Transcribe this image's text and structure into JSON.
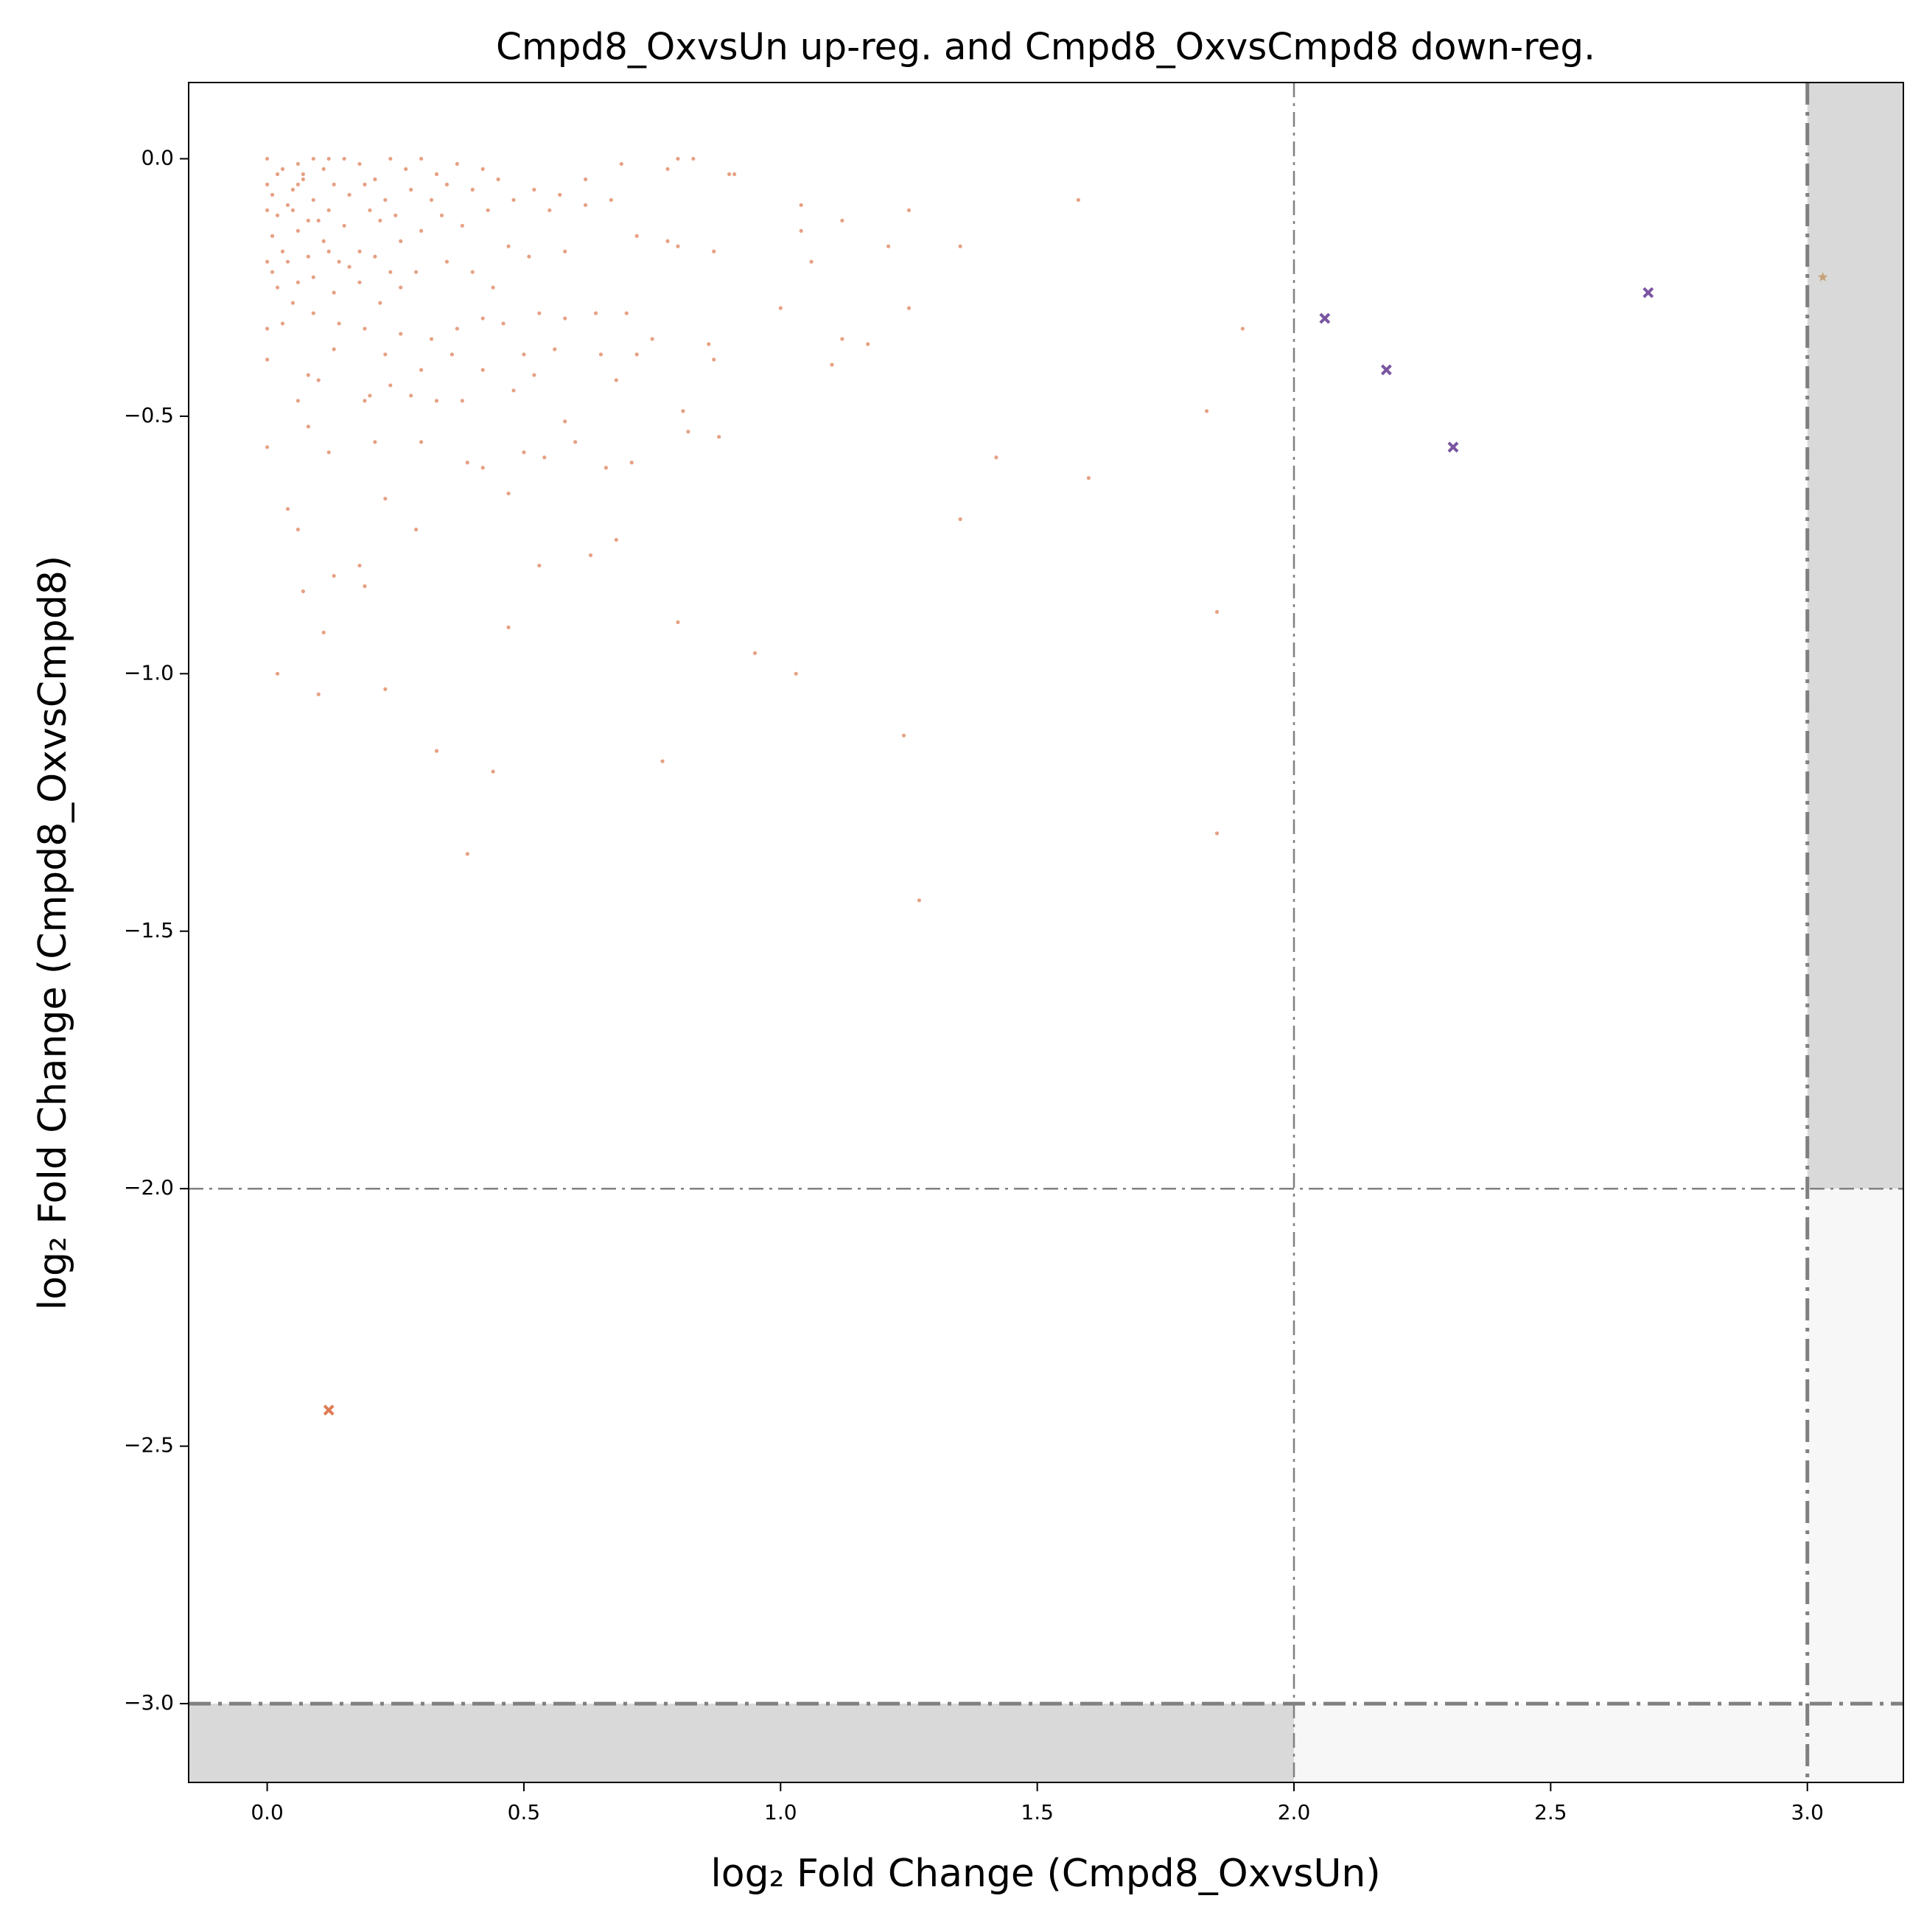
{
  "chart_data": {
    "type": "scatter",
    "title": "Cmpd8_OxvsUn up-reg. and Cmpd8_OxvsCmpd8 down-reg.",
    "x_label": "log₂ Fold Change (Cmpd8_OxvsUn)",
    "y_label": "log₂ Fold Change (Cmpd8_OxvsCmpd8)",
    "xlim": [
      -0.153,
      3.187
    ],
    "ylim": [
      -3.153,
      0.148
    ],
    "xticks": [
      {
        "value": 0,
        "label": "0.0"
      },
      0.5,
      {
        "value": 1,
        "label": "1.0"
      },
      1.5,
      {
        "value": 2,
        "label": "2.0"
      },
      2.5,
      {
        "value": 3,
        "label": "3.0"
      }
    ],
    "yticks": [
      {
        "value": 0,
        "label": "0.0"
      },
      {
        "value": -0.5,
        "label": "−0.5"
      },
      {
        "value": -1,
        "label": "−1.0"
      },
      {
        "value": -1.5,
        "label": "−1.5"
      },
      {
        "value": -2,
        "label": "−2.0"
      },
      {
        "value": -2.5,
        "label": "−2.5"
      },
      {
        "value": -3,
        "label": "−3.0"
      }
    ],
    "vlines": [
      2,
      3
    ],
    "hlines": [
      -2,
      -3
    ],
    "series": [
      {
        "color": "#e08a65",
        "marker": "dot",
        "x": [
          0.69,
          0.78,
          0.8,
          0.83,
          0.91,
          1.04,
          1.58,
          1.12,
          1.25,
          1.04,
          1.06,
          1.21,
          1.35,
          1.0,
          1.25,
          1.12,
          1.17,
          1.1,
          0.9,
          0.72,
          0.78,
          0.8,
          0.87,
          0.81,
          0.82,
          0.88,
          0.87,
          0.86,
          1.83,
          1.9,
          1.42,
          1.6,
          1.35,
          1.85,
          0.8,
          0.95,
          1.03,
          1.24,
          0.77,
          1.27,
          1.85,
          0.39,
          0.44,
          0.33,
          0.23,
          0.1,
          0.02,
          0.11,
          0.47,
          0.19,
          0.07,
          0.13,
          0.18,
          0.53,
          0.63,
          0.68,
          0.29,
          0.23,
          0.47,
          0.06,
          0.04,
          0.39,
          0.42,
          0.5,
          0.54,
          0.66,
          0.71,
          0.3,
          0.21,
          0.12,
          0.0,
          0.06,
          0.08,
          0.19,
          0.2,
          0.24,
          0.28,
          0.33,
          0.38,
          0.48,
          0.52,
          0.58,
          0.6,
          0.68,
          0.72,
          0.65,
          0.56,
          0.5,
          0.42,
          0.36,
          0.3,
          0.23,
          0.13,
          0.1,
          0.08,
          0.0,
          0.0,
          0.03,
          0.09,
          0.14,
          0.19,
          0.26,
          0.32,
          0.37,
          0.42,
          0.46,
          0.53,
          0.58,
          0.64,
          0.7,
          0.75,
          0.58,
          0.62,
          0.55,
          0.51,
          0.47,
          0.44,
          0.4,
          0.35,
          0.29,
          0.26,
          0.22,
          0.18,
          0.13,
          0.09,
          0.05,
          0.02,
          0.0,
          0.01,
          0.03,
          0.06,
          0.08,
          0.11,
          0.15,
          0.18,
          0.22,
          0.26,
          0.3,
          0.34,
          0.38,
          0.43,
          0.48,
          0.52,
          0.57,
          0.62,
          0.67,
          0.42,
          0.37,
          0.33,
          0.3,
          0.27,
          0.24,
          0.21,
          0.18,
          0.15,
          0.13,
          0.11,
          0.09,
          0.07,
          0.05,
          0.03,
          0.01,
          0.02,
          0.04,
          0.06,
          0.07,
          0.05,
          0.08,
          0.12,
          0.16,
          0.19,
          0.23,
          0.28,
          0.32,
          0.35,
          0.4,
          0.45,
          0.2,
          0.25,
          0.14,
          0.1,
          0.0,
          0.01,
          0.04,
          0.06,
          0.12,
          0.16,
          0.21,
          0.24,
          0.0,
          0.02,
          0.09,
          0.12,
          0.06,
          0.0
        ],
        "values": [
          -0.01,
          -0.02,
          0.0,
          0.0,
          -0.03,
          -0.09,
          -0.08,
          -0.12,
          -0.1,
          -0.14,
          -0.2,
          -0.17,
          -0.17,
          -0.29,
          -0.29,
          -0.35,
          -0.36,
          -0.4,
          -0.03,
          -0.15,
          -0.16,
          -0.17,
          -0.18,
          -0.49,
          -0.53,
          -0.54,
          -0.39,
          -0.36,
          -0.49,
          -0.33,
          -0.58,
          -0.62,
          -0.7,
          -0.88,
          -0.9,
          -0.96,
          -1.0,
          -1.12,
          -1.17,
          -1.44,
          -1.31,
          -1.35,
          -1.19,
          -1.15,
          -1.03,
          -1.04,
          -1.0,
          -0.92,
          -0.91,
          -0.83,
          -0.84,
          -0.81,
          -0.79,
          -0.79,
          -0.77,
          -0.74,
          -0.72,
          -0.66,
          -0.65,
          -0.72,
          -0.68,
          -0.59,
          -0.6,
          -0.57,
          -0.58,
          -0.6,
          -0.59,
          -0.55,
          -0.55,
          -0.57,
          -0.56,
          -0.47,
          -0.52,
          -0.47,
          -0.46,
          -0.44,
          -0.46,
          -0.47,
          -0.47,
          -0.45,
          -0.42,
          -0.51,
          -0.55,
          -0.43,
          -0.38,
          -0.38,
          -0.37,
          -0.38,
          -0.41,
          -0.38,
          -0.41,
          -0.38,
          -0.37,
          -0.43,
          -0.42,
          -0.39,
          -0.33,
          -0.32,
          -0.3,
          -0.32,
          -0.33,
          -0.34,
          -0.35,
          -0.33,
          -0.31,
          -0.32,
          -0.3,
          -0.31,
          -0.3,
          -0.3,
          -0.35,
          -0.18,
          -0.09,
          -0.1,
          -0.19,
          -0.17,
          -0.25,
          -0.22,
          -0.2,
          -0.22,
          -0.25,
          -0.28,
          -0.24,
          -0.26,
          -0.23,
          -0.28,
          -0.25,
          -0.2,
          -0.15,
          -0.18,
          -0.14,
          -0.19,
          -0.16,
          -0.13,
          -0.18,
          -0.12,
          -0.16,
          -0.14,
          -0.11,
          -0.13,
          -0.1,
          -0.08,
          -0.06,
          -0.07,
          -0.04,
          -0.08,
          -0.02,
          -0.01,
          -0.03,
          0.0,
          -0.02,
          0.0,
          -0.04,
          -0.01,
          0.0,
          -0.05,
          -0.02,
          -0.08,
          -0.04,
          -0.06,
          -0.02,
          -0.07,
          -0.11,
          -0.09,
          -0.05,
          -0.03,
          -0.1,
          -0.12,
          -0.1,
          -0.07,
          -0.05,
          -0.08,
          -0.06,
          -0.08,
          -0.05,
          -0.06,
          -0.04,
          -0.1,
          -0.11,
          -0.2,
          -0.12,
          -0.05,
          -0.22,
          -0.2,
          -0.24,
          -0.18,
          -0.21,
          -0.19,
          -0.22,
          -0.1,
          -0.03,
          0.0,
          0.0,
          -0.01,
          0.0
        ]
      },
      {
        "color": "#7a55a0",
        "marker": "x",
        "x": [
          2.06,
          2.18,
          2.31,
          2.69
        ],
        "values": [
          -0.31,
          -0.41,
          -0.56,
          -0.26
        ]
      },
      {
        "color": "#e07b54",
        "marker": "x",
        "x": [
          0.12
        ],
        "values": [
          -2.43
        ]
      },
      {
        "color": "#c8a27a",
        "marker": "star",
        "x": [
          3.03
        ],
        "values": [
          -0.23
        ]
      }
    ]
  }
}
